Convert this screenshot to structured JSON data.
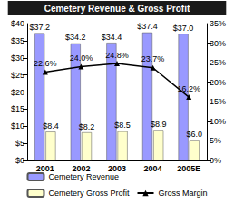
{
  "chart_data": {
    "type": "bar",
    "title": "Cemetery Revenue & Gross Profit",
    "categories": [
      "2001",
      "2002",
      "2003",
      "2004",
      "2005E"
    ],
    "series": [
      {
        "name": "Cemetery Revenue",
        "type": "bar",
        "color": "#9999ff",
        "values": [
          37.2,
          34.2,
          34.4,
          37.4,
          37.0
        ],
        "value_labels": [
          "$37.2",
          "$34.2",
          "$34.4",
          "$37.4",
          "$37.0"
        ]
      },
      {
        "name": "Cemetery Gross Profit",
        "type": "bar",
        "color": "#ffffcc",
        "values": [
          8.4,
          8.2,
          8.5,
          8.9,
          6.0
        ],
        "value_labels": [
          "$8.4",
          "$8.2",
          "$8.5",
          "$8.9",
          "$6.0"
        ]
      },
      {
        "name": "Gross Margin",
        "type": "line",
        "axis": "y2",
        "color": "#000000",
        "marker": "triangle",
        "line_style": "solid",
        "values": [
          22.6,
          24.0,
          24.8,
          23.7,
          16.2
        ],
        "value_labels": [
          "22.6%",
          "24.0%",
          "24.8%",
          "23.7%",
          "16.2%"
        ]
      }
    ],
    "ylim": [
      0,
      40
    ],
    "yticks": [
      {
        "value": 0,
        "label": "$0"
      },
      {
        "value": 5,
        "label": "$5"
      },
      {
        "value": 10,
        "label": "$10"
      },
      {
        "value": 15,
        "label": "$15"
      },
      {
        "value": 20,
        "label": "$20"
      },
      {
        "value": 25,
        "label": "$25"
      },
      {
        "value": 30,
        "label": "$30"
      },
      {
        "value": 35,
        "label": "$35"
      },
      {
        "value": 40,
        "label": "$40"
      }
    ],
    "y2lim": [
      0,
      35
    ],
    "y2ticks": [
      {
        "value": 0,
        "label": "0%"
      },
      {
        "value": 5,
        "label": "5%"
      },
      {
        "value": 10,
        "label": "10%"
      },
      {
        "value": 15,
        "label": "15%"
      },
      {
        "value": 20,
        "label": "20%"
      },
      {
        "value": 25,
        "label": "25%"
      },
      {
        "value": 30,
        "label": "30%"
      },
      {
        "value": 35,
        "label": "35%"
      }
    ],
    "grid": false,
    "legend": "bottom",
    "data_labels": true
  }
}
